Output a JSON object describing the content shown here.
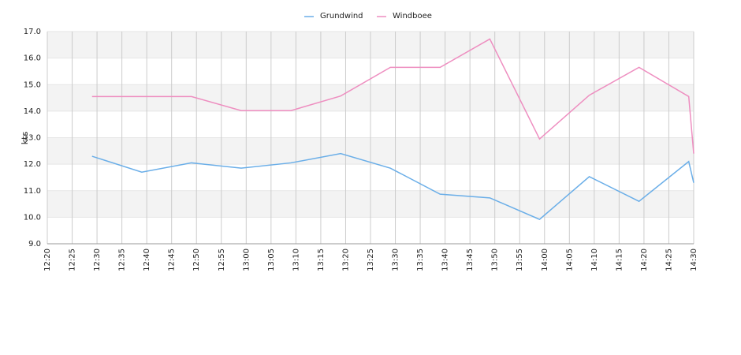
{
  "chart_data": {
    "type": "line",
    "y_label": "kts",
    "x": [
      "12:29",
      "12:39",
      "12:49",
      "12:59",
      "13:09",
      "13:19",
      "13:29",
      "13:39",
      "13:49",
      "13:59",
      "14:09",
      "14:19",
      "14:29",
      "14:30"
    ],
    "series": [
      {
        "name": "Grundwind",
        "color": "#6aaee8",
        "values": [
          12.3,
          11.7,
          12.05,
          11.85,
          12.05,
          12.4,
          11.85,
          10.87,
          10.73,
          9.92,
          11.53,
          10.6,
          12.1,
          11.3
        ]
      },
      {
        "name": "Windboee",
        "color": "#ee8ec0",
        "values": [
          14.55,
          14.55,
          14.55,
          14.02,
          14.02,
          14.57,
          15.65,
          15.65,
          16.72,
          12.95,
          14.6,
          15.65,
          14.55,
          12.4
        ]
      }
    ],
    "xlim": [
      "12:20",
      "14:30"
    ],
    "xticks": [
      "12:20",
      "12:25",
      "12:30",
      "12:35",
      "12:40",
      "12:45",
      "12:50",
      "12:55",
      "13:00",
      "13:05",
      "13:10",
      "13:15",
      "13:20",
      "13:25",
      "13:30",
      "13:35",
      "13:40",
      "13:45",
      "13:50",
      "13:55",
      "14:00",
      "14:05",
      "14:10",
      "14:15",
      "14:20",
      "14:25",
      "14:30"
    ],
    "ylim": [
      9,
      17
    ],
    "yticks": [
      {
        "value": 9,
        "label": "9.0"
      },
      {
        "value": 10,
        "label": "10.0"
      },
      {
        "value": 11,
        "label": "11.0"
      },
      {
        "value": 12,
        "label": "12.0"
      },
      {
        "value": 13,
        "label": "13.0"
      },
      {
        "value": 14,
        "label": "14.0"
      },
      {
        "value": 15,
        "label": "15.0"
      },
      {
        "value": 16,
        "label": "16.0"
      },
      {
        "value": 17,
        "label": "17.0"
      }
    ],
    "grid": true,
    "legend": "top"
  }
}
